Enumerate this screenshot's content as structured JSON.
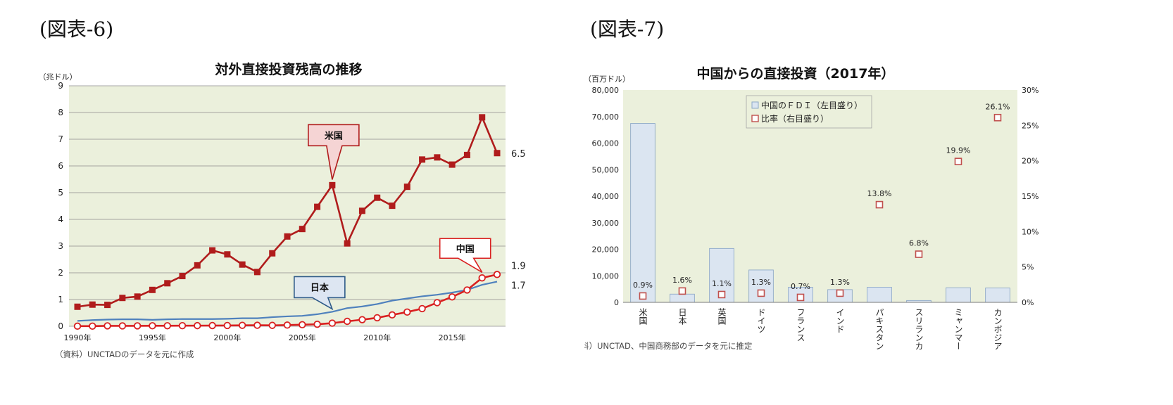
{
  "fig6": {
    "label": "(図表-6)",
    "note": "（資料）UNCTADのデータを元に作成",
    "chart_data": {
      "type": "line",
      "title": "対外直接投資残高の推移",
      "ylabel": "（兆ドル）",
      "xlabel": "",
      "ylim": [
        0,
        9
      ],
      "y_ticks": [
        "0",
        "1",
        "2",
        "3",
        "4",
        "5",
        "6",
        "7",
        "8",
        "9"
      ],
      "x_tick_labels": [
        "1990年",
        "1995年",
        "2000年",
        "2005年",
        "2010年",
        "2015年"
      ],
      "x": [
        1990,
        1991,
        1992,
        1993,
        1994,
        1995,
        1996,
        1997,
        1998,
        1999,
        2000,
        2001,
        2002,
        2003,
        2004,
        2005,
        2006,
        2007,
        2008,
        2009,
        2010,
        2011,
        2012,
        2013,
        2014,
        2015,
        2016,
        2017,
        2018
      ],
      "grid": true,
      "series": [
        {
          "name": "米国",
          "color": "#b01c1c",
          "marker": "square",
          "values": [
            0.73,
            0.81,
            0.8,
            1.06,
            1.11,
            1.36,
            1.61,
            1.88,
            2.28,
            2.84,
            2.69,
            2.31,
            2.03,
            2.73,
            3.36,
            3.64,
            4.47,
            5.28,
            3.1,
            4.32,
            4.81,
            4.51,
            5.22,
            6.24,
            6.32,
            6.05,
            6.41,
            7.82,
            6.48
          ],
          "end_label": "6.5"
        },
        {
          "name": "中国",
          "color": "#d92020",
          "marker": "circle",
          "values": [
            0.004,
            0.005,
            0.016,
            0.014,
            0.016,
            0.018,
            0.019,
            0.021,
            0.023,
            0.026,
            0.028,
            0.035,
            0.037,
            0.033,
            0.045,
            0.057,
            0.075,
            0.116,
            0.184,
            0.246,
            0.317,
            0.425,
            0.531,
            0.66,
            0.883,
            1.098,
            1.358,
            1.809,
            1.938
          ],
          "end_label": "1.9"
        },
        {
          "name": "日本",
          "color": "#4f81bd",
          "marker": "none",
          "values": [
            0.2,
            0.23,
            0.25,
            0.26,
            0.26,
            0.24,
            0.26,
            0.27,
            0.27,
            0.27,
            0.28,
            0.3,
            0.3,
            0.34,
            0.37,
            0.39,
            0.45,
            0.54,
            0.68,
            0.74,
            0.83,
            0.96,
            1.04,
            1.12,
            1.18,
            1.26,
            1.36,
            1.55,
            1.67
          ],
          "end_label": "1.7"
        }
      ]
    }
  },
  "fig7": {
    "label": "(図表-7)",
    "note": "（資料）UNCTAD、中国商務部のデータを元に推定",
    "chart_data": {
      "type": "bar",
      "title": "中国からの直接投資（2017年）",
      "ylabel": "（百万ドル）",
      "ylim": [
        0,
        80000
      ],
      "y_ticks": [
        "0",
        "10,000",
        "20,000",
        "30,000",
        "40,000",
        "50,000",
        "60,000",
        "70,000",
        "80,000"
      ],
      "y2lim": [
        0,
        30
      ],
      "y2_ticks": [
        "0%",
        "5%",
        "10%",
        "15%",
        "20%",
        "25%",
        "30%"
      ],
      "categories": [
        "米国",
        "日本",
        "英国",
        "ドイツ",
        "フランス",
        "インド",
        "パキスタン",
        "スリランカ",
        "ミャンマー",
        "カンボジア"
      ],
      "grid": false,
      "legend_position": "top-center",
      "series": [
        {
          "name": "中国のＦＤＩ（左目盛り）",
          "axis": "left",
          "type": "bar",
          "color": "#dbe5f1",
          "values": [
            67400,
            3100,
            20300,
            12200,
            5700,
            4800,
            5700,
            700,
            5500,
            5400
          ]
        },
        {
          "name": "比率（右目盛り）",
          "axis": "right",
          "type": "scatter",
          "color": "#c0504d",
          "values": [
            0.9,
            1.6,
            1.1,
            1.3,
            0.7,
            1.3,
            13.8,
            6.8,
            19.9,
            26.1
          ],
          "labels": [
            "0.9%",
            "1.6%",
            "1.1%",
            "1.3%",
            "0.7%",
            "1.3%",
            "13.8%",
            "6.8%",
            "19.9%",
            "26.1%"
          ]
        }
      ]
    }
  }
}
